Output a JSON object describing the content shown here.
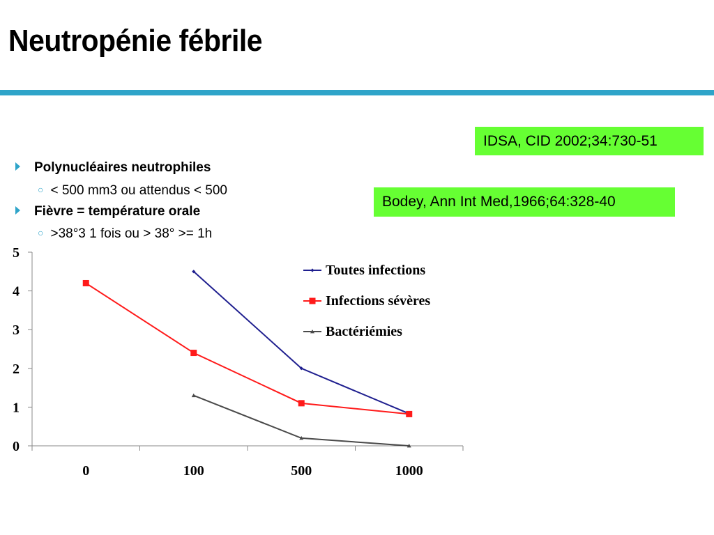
{
  "slide": {
    "title": "Neutropénie fébrile",
    "references": [
      "IDSA, CID 2002;34:730-51",
      "Bodey, Ann Int Med,1966;64:328-40"
    ],
    "bullets": [
      {
        "level": 1,
        "text": "Polynucléaires neutrophiles"
      },
      {
        "level": 2,
        "text": "< 500 mm3 ou attendus < 500"
      },
      {
        "level": 1,
        "text": "Fièvre = température orale"
      },
      {
        "level": 2,
        "text": ">38°3 1 fois ou > 38° >= 1h"
      }
    ],
    "colors": {
      "accent": "#2fa4c9",
      "ref_bg": "#66ff33"
    }
  },
  "chart_data": {
    "type": "line",
    "title": "",
    "xlabel": "",
    "ylabel": "",
    "categories": [
      "0",
      "100",
      "500",
      "1000"
    ],
    "ylim": [
      0,
      5
    ],
    "yticks": [
      "0",
      "1",
      "2",
      "3",
      "4",
      "5"
    ],
    "grid": false,
    "legend": "top-right",
    "series": [
      {
        "name": "Toutes infections",
        "color": "#1f1f8f",
        "marker": "diamond",
        "values": [
          null,
          4.5,
          2.0,
          0.83
        ]
      },
      {
        "name": "Infections sévères",
        "color": "#ff1a1a",
        "marker": "square",
        "values": [
          4.2,
          2.4,
          1.1,
          0.82
        ]
      },
      {
        "name": "Bactériémies",
        "color": "#4a4a4a",
        "marker": "triangle",
        "values": [
          null,
          1.3,
          0.2,
          0.0
        ]
      }
    ]
  }
}
